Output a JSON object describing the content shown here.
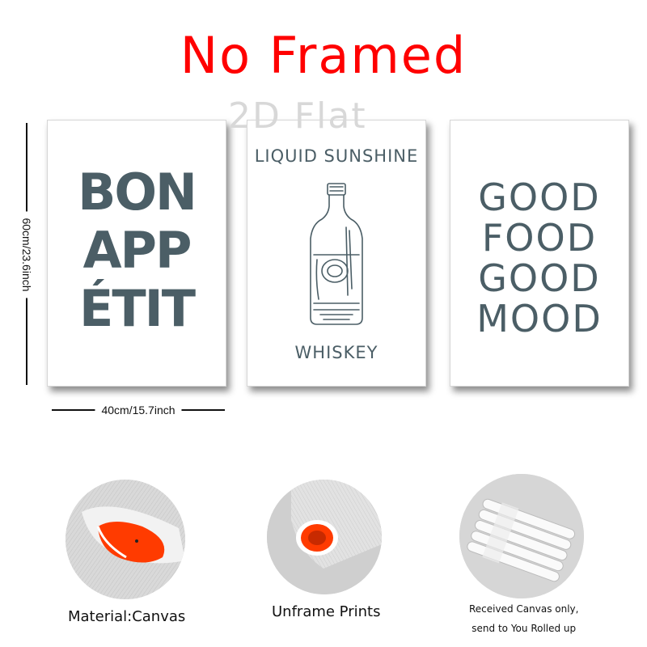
{
  "header": {
    "title": "No Framed",
    "watermark": "2D Flat"
  },
  "posters": [
    {
      "lines": [
        "BON",
        "APP",
        "ÉTIT"
      ]
    },
    {
      "top_text": "LIQUID SUNSHINE",
      "bottom_text": "WHISKEY",
      "illustration": "whiskey-bottle"
    },
    {
      "lines": [
        "GOOD",
        "FOOD",
        "GOOD",
        "MOOD"
      ]
    }
  ],
  "dimensions": {
    "height": "60cm/23.6inch",
    "width": "40cm/15.7inch"
  },
  "features": [
    {
      "caption": "Material:Canvas",
      "icon": "canvas-material-photo"
    },
    {
      "caption": "Unframe Prints",
      "icon": "rolled-print-photo"
    },
    {
      "caption_lines": [
        "Received Canvas only,",
        "send to You Rolled up"
      ],
      "icon": "rolled-tubes-photo"
    }
  ],
  "colors": {
    "title": "#ff0000",
    "poster_text": "#4b5e66",
    "accent_orange": "#ff3b00"
  }
}
